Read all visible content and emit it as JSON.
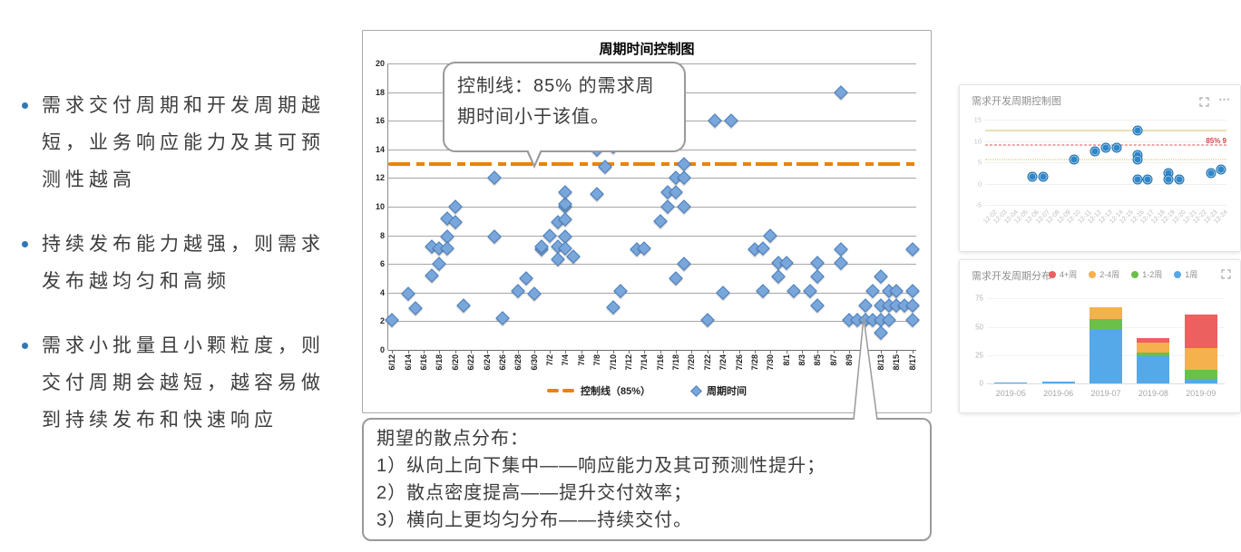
{
  "left_panel": {
    "bullets": [
      "需求交付周期和开发周期越短，业务响应能力及其可预测性越高",
      "持续发布能力越强，则需求发布越均匀和高频",
      "需求小批量且小颗粒度，则交付周期会越短，越容易做到持续发布和快速响应"
    ]
  },
  "annotation_box": {
    "lines": [
      "期望的散点分布：",
      "1）纵向上向下集中——响应能力及其可预测性提升；",
      "2）散点密度提高——提升交付效率；",
      "3）横向上更均匀分布——持续交付。"
    ]
  },
  "cards": {
    "scatter_title": "需求开发周期控制图",
    "bars_title": "需求开发周期分布",
    "more_icon_label": "⋯"
  },
  "chart_data": [
    {
      "type": "scatter",
      "title": "周期时间控制图",
      "callout": "控制线：85% 的需求周期时间小于该值。",
      "legend": {
        "control": "控制线（85%）",
        "series": "周期时间"
      },
      "colors": {
        "control_line": "#E8830C",
        "marker_fill": "#79A7DB",
        "marker_border": "#4A7EBB"
      },
      "ylim": [
        0,
        20
      ],
      "ytick_step": 2,
      "grid": true,
      "control_value": 13,
      "days_total": 67,
      "x_labels": [
        "6/12",
        "6/14",
        "6/16",
        "6/18",
        "6/20",
        "6/22",
        "6/24",
        "6/26",
        "6/28",
        "6/30",
        "7/2",
        "7/4",
        "7/6",
        "7/8",
        "7/10",
        "7/12",
        "7/14",
        "7/16",
        "7/18",
        "7/20",
        "7/22",
        "7/24",
        "7/26",
        "7/28",
        "7/30",
        "8/1",
        "8/3",
        "8/5",
        "8/7",
        "8/9",
        "8/11",
        "8/13",
        "8/15",
        "8/17"
      ],
      "points": [
        [
          0,
          2.1
        ],
        [
          2,
          3.9
        ],
        [
          3,
          2.9
        ],
        [
          5,
          5.2
        ],
        [
          5,
          7.2
        ],
        [
          6,
          7.1
        ],
        [
          6,
          6
        ],
        [
          7,
          9.2
        ],
        [
          7,
          7.9
        ],
        [
          7,
          7.1
        ],
        [
          8,
          10
        ],
        [
          8,
          8.9
        ],
        [
          9,
          3.1
        ],
        [
          13,
          12
        ],
        [
          13,
          7.9
        ],
        [
          14,
          2.2
        ],
        [
          16,
          4.1
        ],
        [
          17,
          5
        ],
        [
          18,
          3.9
        ],
        [
          19,
          7
        ],
        [
          19,
          7.2
        ],
        [
          20,
          8
        ],
        [
          21,
          8.9
        ],
        [
          21,
          7.2
        ],
        [
          21,
          6.3
        ],
        [
          22,
          10
        ],
        [
          22,
          10.2
        ],
        [
          22,
          11
        ],
        [
          22,
          9.1
        ],
        [
          22,
          7.9
        ],
        [
          22,
          7.1
        ],
        [
          23,
          6.5
        ],
        [
          26,
          14
        ],
        [
          26,
          10.9
        ],
        [
          27,
          12.8
        ],
        [
          28,
          14.2
        ],
        [
          28,
          3
        ],
        [
          29,
          4.1
        ],
        [
          31,
          7
        ],
        [
          32,
          7.1
        ],
        [
          34,
          9
        ],
        [
          35,
          11
        ],
        [
          35,
          10
        ],
        [
          36,
          11
        ],
        [
          36,
          12
        ],
        [
          36,
          5
        ],
        [
          37,
          12
        ],
        [
          37,
          13
        ],
        [
          37,
          10
        ],
        [
          37,
          6
        ],
        [
          40,
          2.1
        ],
        [
          41,
          16
        ],
        [
          42,
          4
        ],
        [
          43,
          16
        ],
        [
          46,
          7
        ],
        [
          47,
          7.1
        ],
        [
          47,
          4.1
        ],
        [
          48,
          8
        ],
        [
          49,
          5.1
        ],
        [
          49,
          6.1
        ],
        [
          50,
          6.1
        ],
        [
          51,
          4.1
        ],
        [
          53,
          4.1
        ],
        [
          54,
          6.1
        ],
        [
          54,
          5.1
        ],
        [
          54,
          3.1
        ],
        [
          57,
          18
        ],
        [
          57,
          7
        ],
        [
          57,
          6.1
        ],
        [
          58,
          2.1
        ],
        [
          59,
          2.1
        ],
        [
          60,
          2.1
        ],
        [
          61,
          2.1
        ],
        [
          62,
          2.1
        ],
        [
          63,
          2.1
        ],
        [
          66,
          2.1
        ],
        [
          60,
          3.1
        ],
        [
          62,
          3.1
        ],
        [
          63,
          3.1
        ],
        [
          64,
          3.1
        ],
        [
          65,
          3.1
        ],
        [
          66,
          3.1
        ],
        [
          61,
          4.1
        ],
        [
          63,
          4.1
        ],
        [
          64,
          4.1
        ],
        [
          66,
          4.1
        ],
        [
          62,
          5.1
        ],
        [
          62,
          1.2
        ],
        [
          66,
          7
        ]
      ]
    },
    {
      "type": "scatter",
      "title": "需求开发周期控制图",
      "ylim": [
        -5,
        15
      ],
      "yticks": [
        15,
        10,
        5,
        0,
        -5
      ],
      "marker_color": "#2F86C8",
      "ref_lines": [
        {
          "value": 12.5,
          "color": "#cfc06a",
          "style": "solid",
          "label": ""
        },
        {
          "value": 9,
          "color": "#d9534f",
          "style": "dashed",
          "label": "85% 9"
        },
        {
          "value": 5.6,
          "color": "#cfc06a",
          "style": "dotted",
          "label": ""
        }
      ],
      "x_labels": [
        "12-02",
        "12-03",
        "12-04",
        "12-05",
        "12-06",
        "12-07",
        "12-08",
        "12-09",
        "12-10",
        "12-11",
        "12-12",
        "12-13",
        "12-14",
        "12-15",
        "12-16",
        "12-17",
        "12-18",
        "12-19",
        "12-20",
        "12-21",
        "12-22",
        "12-23",
        "12-24"
      ],
      "points": [
        [
          4,
          1.6
        ],
        [
          5,
          1.6
        ],
        [
          8,
          5.7
        ],
        [
          10,
          7.6
        ],
        [
          11,
          8.5
        ],
        [
          12,
          8.5
        ],
        [
          14,
          12.4
        ],
        [
          14,
          6.7
        ],
        [
          14,
          5.6
        ],
        [
          14,
          0.9
        ],
        [
          15,
          0.9
        ],
        [
          17,
          2.4
        ],
        [
          17,
          0.9
        ],
        [
          18,
          0.9
        ],
        [
          21,
          2.4
        ],
        [
          22,
          3.3
        ]
      ]
    },
    {
      "type": "bar",
      "title": "需求开发周期分布",
      "stacked": true,
      "categories": [
        "2019-05",
        "2019-06",
        "2019-07",
        "2019-08",
        "2019-09"
      ],
      "series": [
        {
          "name": "4+周",
          "color": "#EC6060",
          "values": [
            0,
            0,
            0,
            4,
            30
          ]
        },
        {
          "name": "2-4周",
          "color": "#F5B14E",
          "values": [
            0,
            0,
            10,
            9,
            19
          ]
        },
        {
          "name": "1-2周",
          "color": "#6CC04A",
          "values": [
            0,
            0,
            9,
            3,
            8
          ]
        },
        {
          "name": "1周",
          "color": "#55A9E8",
          "values": [
            0.6,
            2,
            48,
            24,
            4
          ]
        }
      ],
      "yticks": [
        0,
        25,
        50,
        75
      ],
      "ymax": 80
    }
  ]
}
